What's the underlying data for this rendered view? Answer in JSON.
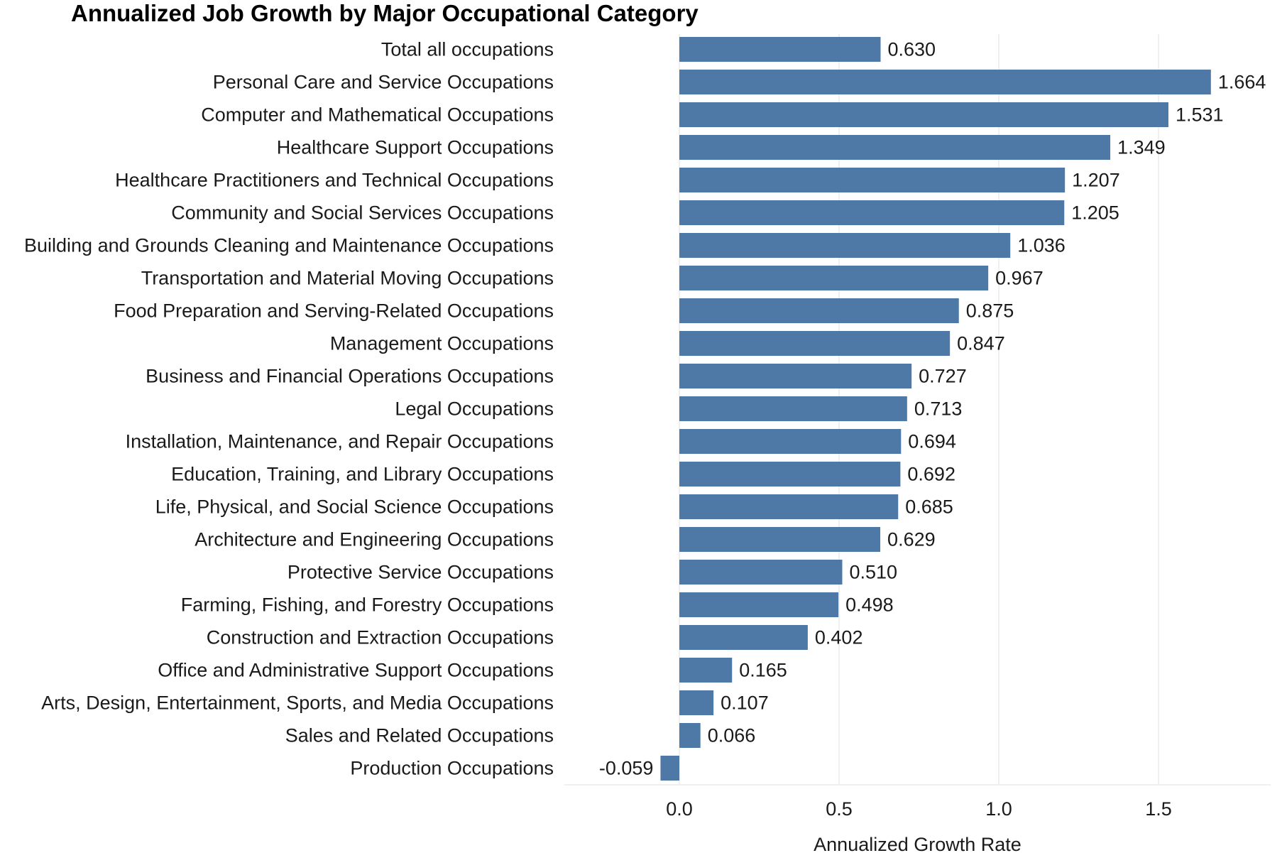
{
  "chart_data": {
    "type": "bar",
    "orientation": "horizontal",
    "title": "Annualized Job Growth by Major Occupational Category",
    "xlabel": "Annualized Growth Rate",
    "ylabel": "",
    "xlim": [
      -0.36,
      1.85
    ],
    "xticks": [
      0.0,
      0.5,
      1.0,
      1.5
    ],
    "xtick_labels": [
      "0.0",
      "0.5",
      "1.0",
      "1.5"
    ],
    "grid": "vertical",
    "bar_color": "#4e78a6",
    "categories": [
      "Total all occupations",
      "Personal Care and Service Occupations",
      "Computer and Mathematical Occupations",
      "Healthcare Support Occupations",
      "Healthcare Practitioners and Technical Occupations",
      "Community and Social Services Occupations",
      "Building and Grounds Cleaning and Maintenance Occupations",
      "Transportation and Material Moving Occupations",
      "Food Preparation and Serving-Related Occupations",
      "Management Occupations",
      "Business and Financial Operations Occupations",
      "Legal Occupations",
      "Installation, Maintenance, and Repair Occupations",
      "Education, Training, and Library Occupations",
      "Life, Physical, and Social Science Occupations",
      "Architecture and Engineering Occupations",
      "Protective Service Occupations",
      "Farming, Fishing, and Forestry Occupations",
      "Construction and Extraction Occupations",
      "Office and Administrative Support Occupations",
      "Arts, Design, Entertainment, Sports, and Media Occupations",
      "Sales and Related Occupations",
      "Production Occupations"
    ],
    "values": [
      0.63,
      1.664,
      1.531,
      1.349,
      1.207,
      1.205,
      1.036,
      0.967,
      0.875,
      0.847,
      0.727,
      0.713,
      0.694,
      0.692,
      0.685,
      0.629,
      0.51,
      0.498,
      0.402,
      0.165,
      0.107,
      0.066,
      -0.059
    ],
    "value_labels": [
      "0.630",
      "1.664",
      "1.531",
      "1.349",
      "1.207",
      "1.205",
      "1.036",
      "0.967",
      "0.875",
      "0.847",
      "0.727",
      "0.713",
      "0.694",
      "0.692",
      "0.685",
      "0.629",
      "0.510",
      "0.498",
      "0.402",
      "0.165",
      "0.107",
      "0.066",
      "-0.059"
    ]
  }
}
